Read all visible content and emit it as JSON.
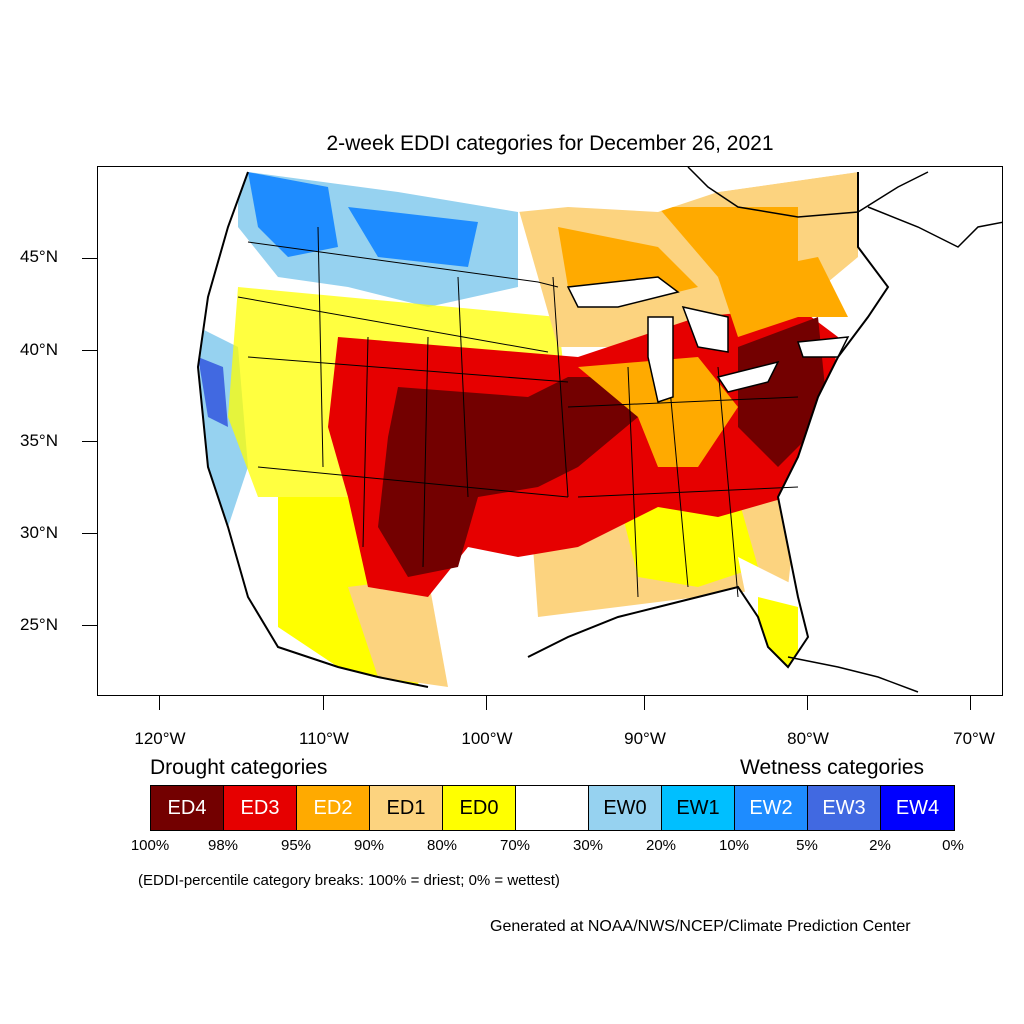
{
  "title": "2-week EDDI categories for December 26, 2021",
  "axes": {
    "lat_labels": [
      "45°N",
      "40°N",
      "35°N",
      "30°N",
      "25°N"
    ],
    "lon_labels": [
      "120°W",
      "110°W",
      "100°W",
      "90°W",
      "80°W",
      "70°W"
    ]
  },
  "legend": {
    "drought_heading": "Drought categories",
    "wetness_heading": "Wetness categories",
    "categories": [
      {
        "label": "ED4",
        "color": "#730000",
        "text_color": "#ffffff"
      },
      {
        "label": "ED3",
        "color": "#e60000",
        "text_color": "#ffffff"
      },
      {
        "label": "ED2",
        "color": "#ffaa00",
        "text_color": "#ffffff"
      },
      {
        "label": "ED1",
        "color": "#fcd37f",
        "text_color": "#000000"
      },
      {
        "label": "ED0",
        "color": "#ffff00",
        "text_color": "#000000"
      },
      {
        "label": "",
        "color": "#ffffff",
        "text_color": "#000000"
      },
      {
        "label": "EW0",
        "color": "#96d2f0",
        "text_color": "#000000"
      },
      {
        "label": "EW1",
        "color": "#00bfff",
        "text_color": "#000000"
      },
      {
        "label": "EW2",
        "color": "#1e8cff",
        "text_color": "#ffffff"
      },
      {
        "label": "EW3",
        "color": "#4169e1",
        "text_color": "#ffffff"
      },
      {
        "label": "EW4",
        "color": "#0000ff",
        "text_color": "#ffffff"
      }
    ],
    "percentiles": [
      "100%",
      "98%",
      "95%",
      "90%",
      "80%",
      "70%",
      "30%",
      "20%",
      "10%",
      "5%",
      "2%",
      "0%"
    ]
  },
  "note": "(EDDI-percentile category breaks: 100% = driest; 0% = wettest)",
  "credit": "Generated at NOAA/NWS/NCEP/Climate Prediction Center"
}
